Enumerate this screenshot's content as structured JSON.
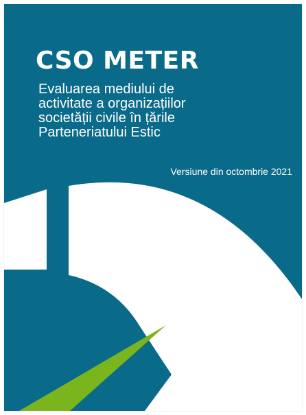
{
  "cover": {
    "title": "CSO METER",
    "subtitle_lines": [
      "Evaluarea mediului de",
      "activitate a organizațiilor",
      "societății civile în țările",
      "Parteneriatului Estic"
    ],
    "version": "Versiune din octombrie 2021"
  },
  "colors": {
    "background": "#0a6a8a",
    "gauge_arc": "#ffffff",
    "needle_accent": "#7ab51d"
  },
  "icons": {
    "gauge": "speedometer-gauge-graphic"
  }
}
